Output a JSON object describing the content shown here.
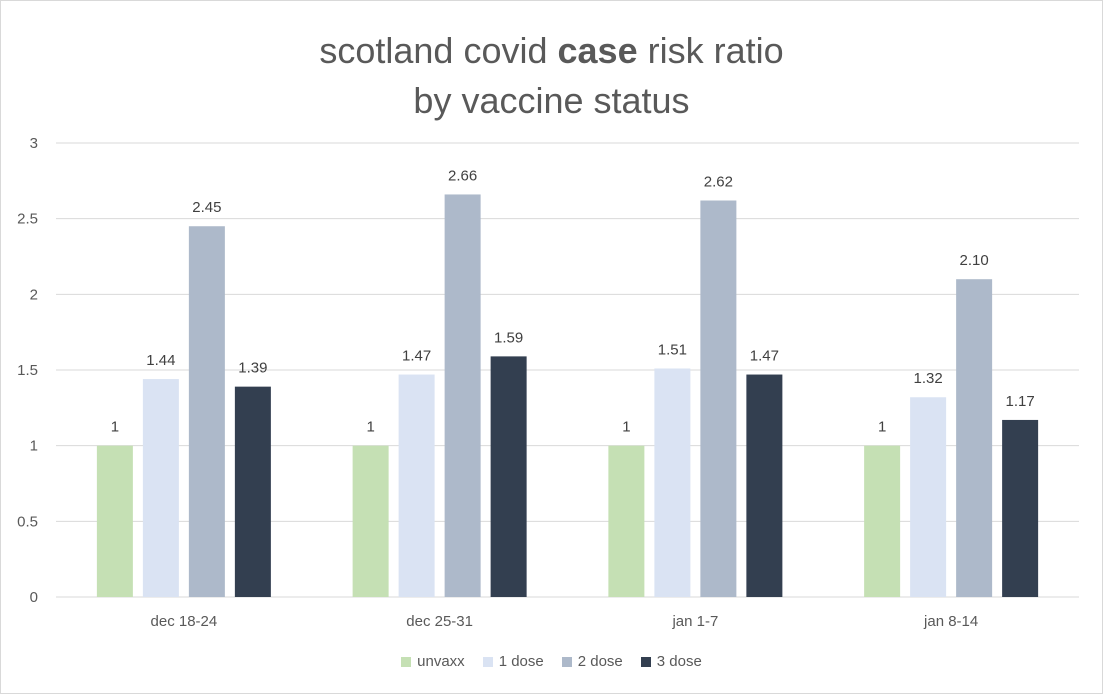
{
  "title": {
    "part1": "scotland covid ",
    "bold": "case",
    "part2": " risk ratio",
    "line2": "by vaccine status"
  },
  "chart_data": {
    "type": "bar",
    "title": "scotland covid case risk ratio by vaccine status",
    "categories": [
      "dec 18-24",
      "dec 25-31",
      "jan 1-7",
      "jan 8-14"
    ],
    "series": [
      {
        "name": "unvaxx",
        "color": "#c5e0b4",
        "values": [
          1,
          1,
          1,
          1
        ],
        "labels": [
          "1",
          "1",
          "1",
          "1"
        ]
      },
      {
        "name": "1 dose",
        "color": "#dae3f3",
        "values": [
          1.44,
          1.47,
          1.51,
          1.32
        ],
        "labels": [
          "1.44",
          "1.47",
          "1.51",
          "1.32"
        ]
      },
      {
        "name": "2 dose",
        "color": "#adb9ca",
        "values": [
          2.45,
          2.66,
          2.62,
          2.1
        ],
        "labels": [
          "2.45",
          "2.66",
          "2.62",
          "2.10"
        ]
      },
      {
        "name": "3 dose",
        "color": "#333f50",
        "values": [
          1.39,
          1.59,
          1.47,
          1.17
        ],
        "labels": [
          "1.39",
          "1.59",
          "1.47",
          "1.17"
        ]
      }
    ],
    "yticks": [
      "0",
      "0.5",
      "1",
      "1.5",
      "2",
      "2.5",
      "3"
    ],
    "ylim": [
      0,
      3
    ],
    "grid": true,
    "legend_position": "bottom"
  }
}
